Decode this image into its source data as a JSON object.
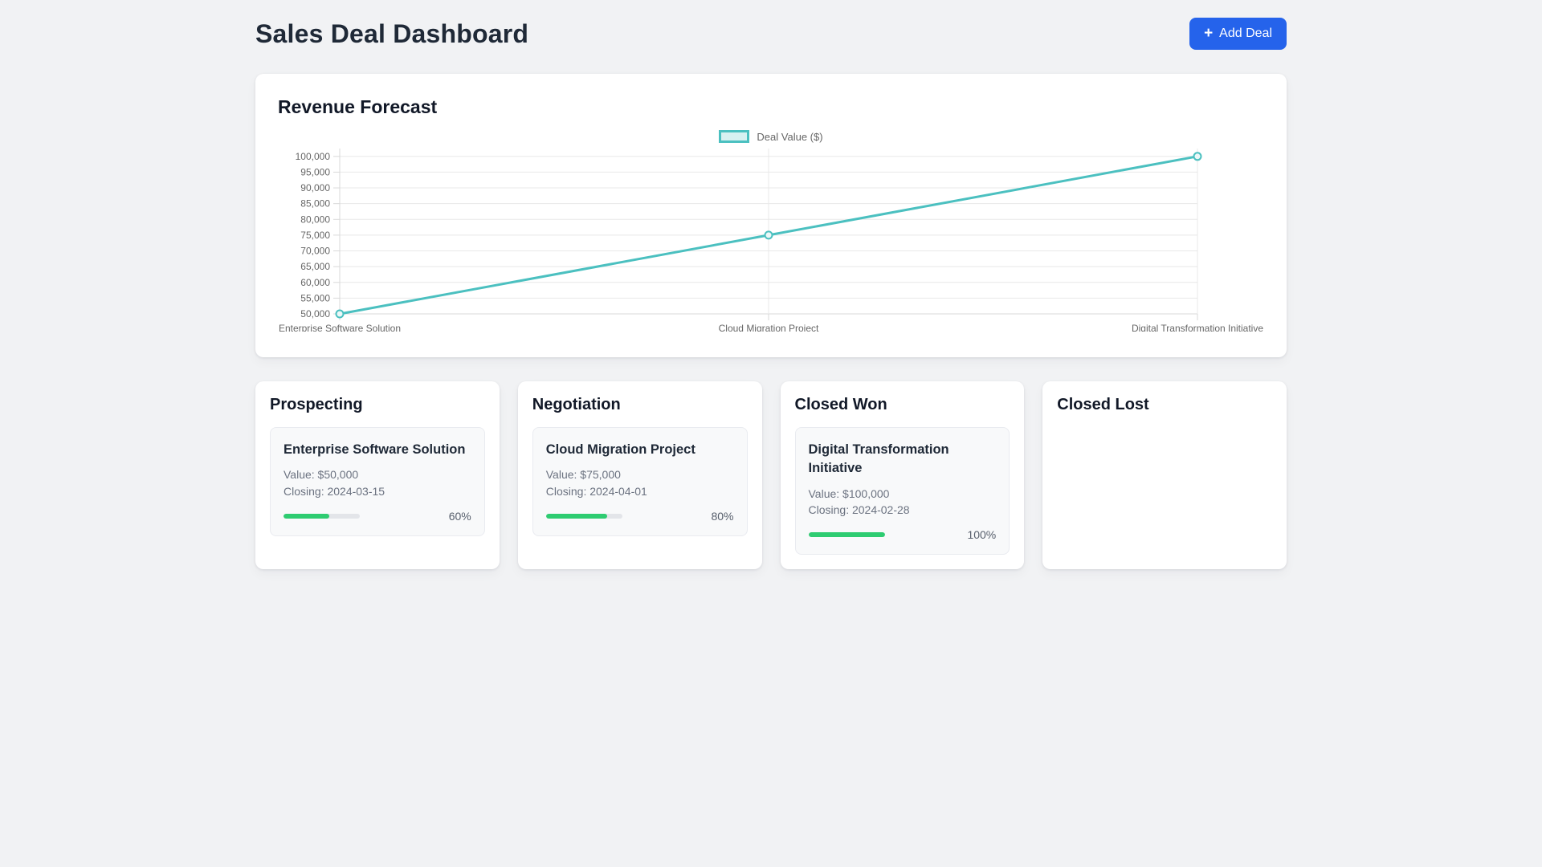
{
  "header": {
    "title": "Sales Deal Dashboard",
    "add_deal_label": "Add Deal",
    "add_deal_icon": "+"
  },
  "revenue_card": {
    "title": "Revenue Forecast"
  },
  "chart_data": {
    "type": "line",
    "title": "Revenue Forecast",
    "legend_position": "top",
    "legend_label": "Deal Value ($)",
    "categories": [
      "Enterprise Software Solution",
      "Cloud Migration Project",
      "Digital Transformation Initiative"
    ],
    "series": [
      {
        "name": "Deal Value ($)",
        "values": [
          50000,
          75000,
          100000
        ],
        "line_color": "#4BC0C0",
        "fill_color": "rgba(75,192,192,0.22)",
        "marker": "open-circle"
      }
    ],
    "xlabel": "",
    "ylabel": "",
    "ylim": [
      50000,
      100000
    ],
    "y_tick_step": 5000,
    "y_tick_labels": [
      "50,000",
      "55,000",
      "60,000",
      "65,000",
      "70,000",
      "75,000",
      "80,000",
      "85,000",
      "90,000",
      "95,000",
      "100,000"
    ],
    "grid": true
  },
  "board": {
    "columns": [
      {
        "title": "Prospecting",
        "deals": [
          {
            "name": "Enterprise Software Solution",
            "value_label": "Value: $50,000",
            "closing_label": "Closing: 2024-03-15",
            "progress_pct": 60,
            "progress_label": "60%"
          }
        ]
      },
      {
        "title": "Negotiation",
        "deals": [
          {
            "name": "Cloud Migration Project",
            "value_label": "Value: $75,000",
            "closing_label": "Closing: 2024-04-01",
            "progress_pct": 80,
            "progress_label": "80%"
          }
        ]
      },
      {
        "title": "Closed Won",
        "deals": [
          {
            "name": "Digital Transformation Initiative",
            "value_label": "Value: $100,000",
            "closing_label": "Closing: 2024-02-28",
            "progress_pct": 100,
            "progress_label": "100%"
          }
        ]
      },
      {
        "title": "Closed Lost",
        "deals": []
      }
    ]
  },
  "colors": {
    "accent_blue": "#2563EB",
    "chart_teal": "#4BC0C0",
    "progress_green": "#2ECC71",
    "page_bg": "#F1F2F4",
    "card_bg": "#FFFFFF",
    "deal_card_bg": "#F8F9FA",
    "text_dark": "#1F2937",
    "text_gray": "#6B7280",
    "axis_text": "#666666",
    "grid_line": "#E8E8E8"
  }
}
